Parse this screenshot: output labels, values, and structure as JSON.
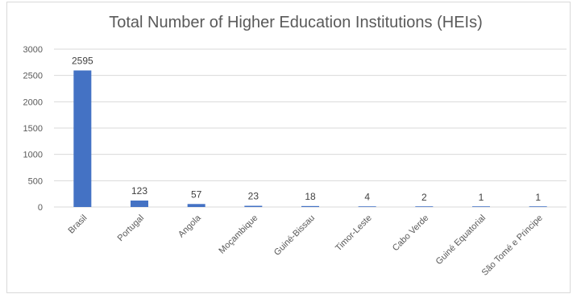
{
  "chart_data": {
    "type": "bar",
    "title": "Total Number of Higher Education Institutions (HEIs)",
    "xlabel": "",
    "ylabel": "",
    "categories": [
      "Brasil",
      "Portugal",
      "Angola",
      "Moçambique",
      "Guiné-Bissau",
      "Timor-Leste",
      "Cabo Verde",
      "Guiné Equatorial",
      "São Tomé e Principe"
    ],
    "values": [
      2595,
      123,
      57,
      23,
      18,
      4,
      2,
      1,
      1
    ],
    "data_labels": [
      "2595",
      "123",
      "57",
      "23",
      "18",
      "4",
      "2",
      "1",
      "1"
    ],
    "ylim": [
      0,
      3000
    ],
    "yticks": [
      0,
      500,
      1000,
      1500,
      2000,
      2500,
      3000
    ],
    "ytick_labels": [
      "0",
      "500",
      "1000",
      "1500",
      "2000",
      "2500",
      "3000"
    ],
    "grid": true,
    "legend": "none",
    "bar_color": "#4472c4",
    "grid_color": "#d9d9d9"
  }
}
